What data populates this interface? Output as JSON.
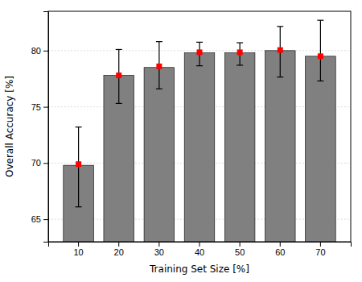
{
  "chart_data": {
    "type": "bar",
    "xlabel": "Training Set Size [%]",
    "ylabel": "Overall Accuracy [%]",
    "categories": [
      "10",
      "20",
      "30",
      "40",
      "50",
      "60",
      "70"
    ],
    "series": [
      {
        "type": "bar",
        "color": "#808080",
        "values": [
          69.8,
          77.8,
          78.5,
          79.8,
          79.8,
          80.0,
          79.5
        ]
      },
      {
        "type": "scatter",
        "color": "#ff0000",
        "marker": "square",
        "values": [
          69.9,
          77.8,
          78.6,
          79.85,
          79.85,
          80.05,
          79.5
        ],
        "error_upper": [
          3.3,
          2.3,
          2.2,
          0.9,
          0.85,
          2.1,
          3.2
        ],
        "error_lower": [
          3.8,
          2.5,
          2.0,
          1.2,
          1.15,
          2.4,
          2.2
        ]
      }
    ],
    "ylim": [
      63.0,
      83.5
    ],
    "yticks": [
      65,
      70,
      75,
      80
    ],
    "grid": true
  }
}
